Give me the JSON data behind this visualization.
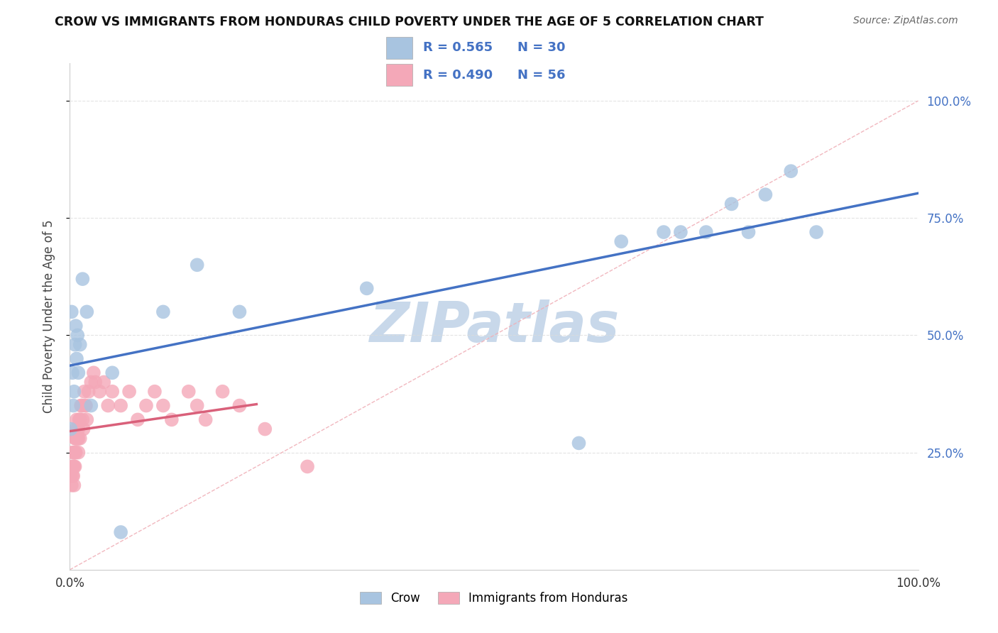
{
  "title": "CROW VS IMMIGRANTS FROM HONDURAS CHILD POVERTY UNDER THE AGE OF 5 CORRELATION CHART",
  "source": "Source: ZipAtlas.com",
  "ylabel": "Child Poverty Under the Age of 5",
  "legend_crow": "Crow",
  "legend_honduras": "Immigrants from Honduras",
  "R_crow": 0.565,
  "N_crow": 30,
  "R_honduras": 0.49,
  "N_honduras": 56,
  "crow_color": "#a8c4e0",
  "honduras_color": "#f4a8b8",
  "crow_line_color": "#4472c4",
  "honduras_line_color": "#d9607a",
  "diagonal_color": "#f0b0b8",
  "text_color_blue": "#4472c4",
  "watermark_color": "#c8d8ea",
  "crow_x": [
    0.001,
    0.002,
    0.003,
    0.004,
    0.005,
    0.006,
    0.007,
    0.008,
    0.009,
    0.01,
    0.012,
    0.015,
    0.02,
    0.025,
    0.05,
    0.06,
    0.11,
    0.15,
    0.2,
    0.35,
    0.6,
    0.65,
    0.7,
    0.72,
    0.75,
    0.78,
    0.8,
    0.82,
    0.85,
    0.88
  ],
  "crow_y": [
    0.3,
    0.55,
    0.42,
    0.35,
    0.38,
    0.48,
    0.52,
    0.45,
    0.5,
    0.42,
    0.48,
    0.62,
    0.55,
    0.35,
    0.42,
    0.08,
    0.55,
    0.65,
    0.55,
    0.6,
    0.27,
    0.7,
    0.72,
    0.72,
    0.72,
    0.78,
    0.72,
    0.8,
    0.85,
    0.72
  ],
  "honduras_x": [
    0.001,
    0.002,
    0.002,
    0.003,
    0.003,
    0.004,
    0.004,
    0.005,
    0.005,
    0.005,
    0.006,
    0.006,
    0.006,
    0.007,
    0.007,
    0.007,
    0.008,
    0.008,
    0.009,
    0.009,
    0.01,
    0.01,
    0.01,
    0.011,
    0.012,
    0.012,
    0.013,
    0.014,
    0.015,
    0.016,
    0.017,
    0.018,
    0.019,
    0.02,
    0.022,
    0.025,
    0.028,
    0.03,
    0.035,
    0.04,
    0.045,
    0.05,
    0.06,
    0.07,
    0.08,
    0.09,
    0.1,
    0.11,
    0.12,
    0.14,
    0.15,
    0.16,
    0.18,
    0.2,
    0.23,
    0.28
  ],
  "honduras_y": [
    0.2,
    0.18,
    0.22,
    0.2,
    0.25,
    0.2,
    0.22,
    0.18,
    0.22,
    0.25,
    0.22,
    0.25,
    0.28,
    0.25,
    0.28,
    0.3,
    0.28,
    0.32,
    0.28,
    0.3,
    0.25,
    0.28,
    0.3,
    0.32,
    0.28,
    0.32,
    0.35,
    0.35,
    0.32,
    0.3,
    0.38,
    0.35,
    0.35,
    0.32,
    0.38,
    0.4,
    0.42,
    0.4,
    0.38,
    0.4,
    0.35,
    0.38,
    0.35,
    0.38,
    0.32,
    0.35,
    0.38,
    0.35,
    0.32,
    0.38,
    0.35,
    0.32,
    0.38,
    0.35,
    0.3,
    0.22
  ],
  "xlim": [
    0.0,
    1.0
  ],
  "ylim": [
    0.0,
    1.08
  ],
  "ytick_values": [
    0.25,
    0.5,
    0.75,
    1.0
  ],
  "ytick_labels": [
    "25.0%",
    "50.0%",
    "75.0%",
    "100.0%"
  ],
  "grid_color": "#dddddd",
  "background_color": "#ffffff"
}
